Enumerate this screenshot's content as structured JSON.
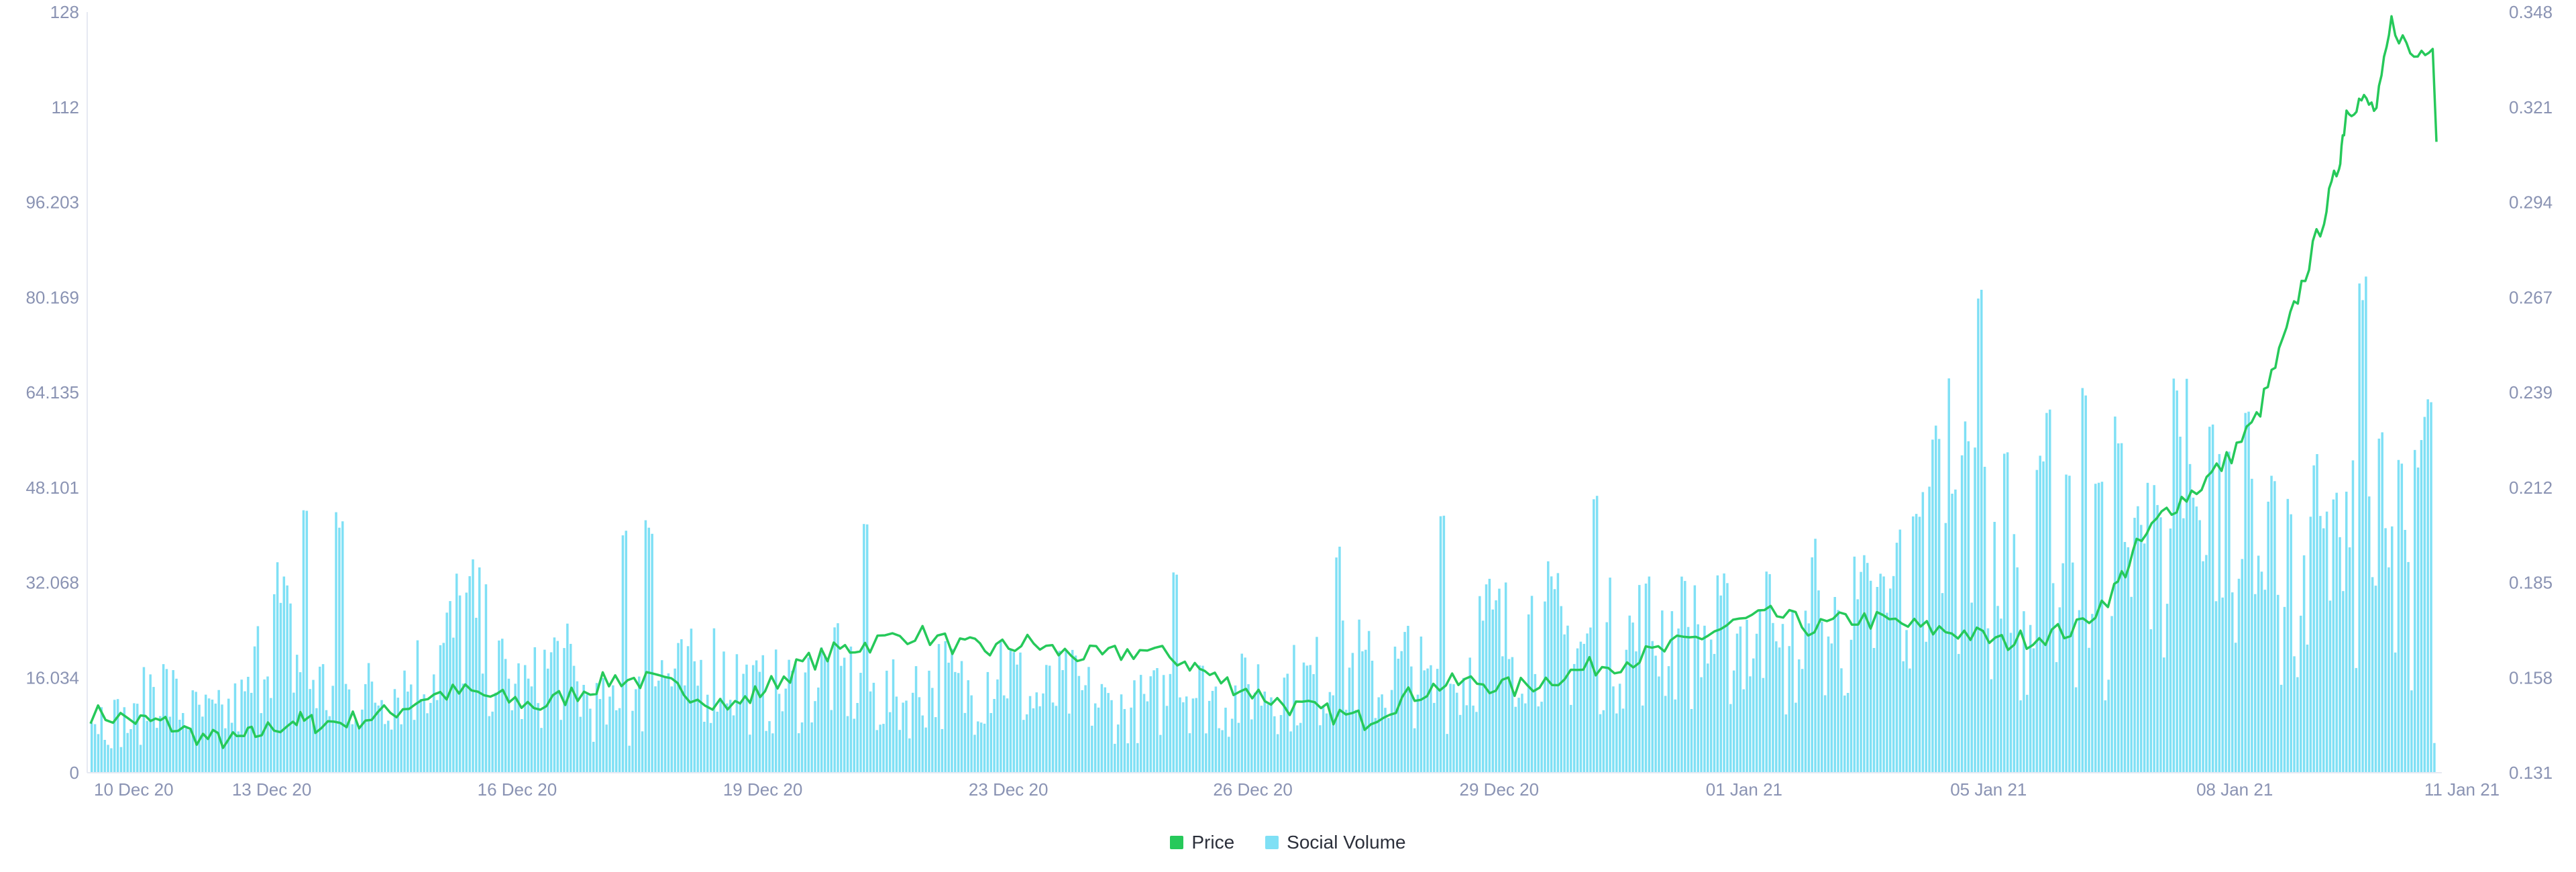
{
  "chart_data": {
    "type": "bar+line",
    "colors": {
      "price": "#26c95a",
      "social_volume": "#7fe0f5",
      "axis_text": "#8a93b3"
    },
    "grid": false,
    "legend_position": "bottom-center",
    "x_ticks": [
      "10 Dec 20",
      "13 Dec 20",
      "16 Dec 20",
      "19 Dec 20",
      "23 Dec 20",
      "26 Dec 20",
      "29 Dec 20",
      "01 Jan 21",
      "05 Jan 21",
      "08 Jan 21",
      "11 Jan 21"
    ],
    "y_left_ticks": [
      "0",
      "16.034",
      "32.068",
      "48.101",
      "64.135",
      "80.169",
      "96.203",
      "112",
      "128"
    ],
    "y_right_ticks": [
      "0.131",
      "0.158",
      "0.185",
      "0.212",
      "0.239",
      "0.267",
      "0.294",
      "0.321",
      "0.348"
    ],
    "y_left_range": [
      0,
      128
    ],
    "y_right_range": [
      0.131,
      0.348
    ],
    "x_range_days": [
      0,
      30.6
    ],
    "series": [
      {
        "name": "Price",
        "type": "line",
        "axis": "right",
        "points": [
          [
            0.0,
            0.148
          ],
          [
            0.6,
            0.146
          ],
          [
            1.0,
            0.145
          ],
          [
            1.5,
            0.141
          ],
          [
            1.9,
            0.14
          ],
          [
            2.2,
            0.142
          ],
          [
            2.7,
            0.146
          ],
          [
            3.0,
            0.145
          ],
          [
            3.5,
            0.146
          ],
          [
            4.0,
            0.148
          ],
          [
            4.5,
            0.153
          ],
          [
            5.0,
            0.154
          ],
          [
            5.5,
            0.152
          ],
          [
            6.0,
            0.15
          ],
          [
            6.5,
            0.154
          ],
          [
            7.0,
            0.158
          ],
          [
            7.5,
            0.157
          ],
          [
            8.0,
            0.154
          ],
          [
            8.6,
            0.15
          ],
          [
            9.0,
            0.155
          ],
          [
            9.5,
            0.162
          ],
          [
            10.0,
            0.166
          ],
          [
            10.4,
            0.168
          ],
          [
            11.0,
            0.171
          ],
          [
            11.6,
            0.167
          ],
          [
            12.0,
            0.166
          ],
          [
            12.5,
            0.168
          ],
          [
            13.0,
            0.165
          ],
          [
            13.5,
            0.164
          ],
          [
            14.0,
            0.166
          ],
          [
            14.6,
            0.163
          ],
          [
            15.0,
            0.158
          ],
          [
            15.5,
            0.154
          ],
          [
            16.0,
            0.15
          ],
          [
            16.5,
            0.148
          ],
          [
            17.0,
            0.146
          ],
          [
            17.5,
            0.152
          ],
          [
            18.0,
            0.156
          ],
          [
            18.5,
            0.157
          ],
          [
            19.0,
            0.155
          ],
          [
            19.5,
            0.158
          ],
          [
            20.0,
            0.161
          ],
          [
            20.5,
            0.163
          ],
          [
            21.0,
            0.166
          ],
          [
            21.5,
            0.17
          ],
          [
            22.0,
            0.174
          ],
          [
            22.5,
            0.176
          ],
          [
            23.0,
            0.172
          ],
          [
            23.5,
            0.175
          ],
          [
            24.0,
            0.174
          ],
          [
            24.5,
            0.172
          ],
          [
            25.0,
            0.171
          ],
          [
            25.5,
            0.168
          ],
          [
            26.0,
            0.17
          ],
          [
            26.5,
            0.172
          ],
          [
            27.0,
            0.183
          ],
          [
            27.3,
            0.195
          ],
          [
            27.7,
            0.206
          ],
          [
            28.1,
            0.212
          ],
          [
            28.5,
            0.22
          ],
          [
            28.9,
            0.232
          ],
          [
            29.2,
            0.25
          ],
          [
            29.5,
            0.27
          ],
          [
            29.8,
            0.29
          ],
          [
            30.0,
            0.305
          ],
          [
            30.1,
            0.32
          ],
          [
            30.3,
            0.323
          ],
          [
            30.5,
            0.32
          ],
          [
            30.7,
            0.345
          ],
          [
            31.0,
            0.335
          ],
          [
            31.3,
            0.341
          ]
        ]
      },
      {
        "name": "Social Volume",
        "type": "bar",
        "axis": "left",
        "bar_count": 720,
        "anchors": [
          [
            0.0,
            10.0
          ],
          [
            0.7,
            8.0
          ],
          [
            1.0,
            16.0
          ],
          [
            1.5,
            10.0
          ],
          [
            2.0,
            9.0
          ],
          [
            2.5,
            12.0
          ],
          [
            2.9,
            28.0
          ],
          [
            3.3,
            18.0
          ],
          [
            3.8,
            13.0
          ],
          [
            4.4,
            13.0
          ],
          [
            5.0,
            15.0
          ],
          [
            5.5,
            18.0
          ],
          [
            6.0,
            27.0
          ],
          [
            6.5,
            16.0
          ],
          [
            7.0,
            13.0
          ],
          [
            7.4,
            19.0
          ],
          [
            8.0,
            11.0
          ],
          [
            8.6,
            9.0
          ],
          [
            9.0,
            17.0
          ],
          [
            9.4,
            15.0
          ],
          [
            10.0,
            18.0
          ],
          [
            10.6,
            13.0
          ],
          [
            11.2,
            14.0
          ],
          [
            11.8,
            17.0
          ],
          [
            12.4,
            13.0
          ],
          [
            13.0,
            12.0
          ],
          [
            13.5,
            16.0
          ],
          [
            14.0,
            13.0
          ],
          [
            14.5,
            19.0
          ],
          [
            15.0,
            12.0
          ],
          [
            15.6,
            14.0
          ],
          [
            16.0,
            12.0
          ],
          [
            16.5,
            10.0
          ],
          [
            17.0,
            12.0
          ],
          [
            17.4,
            15.0
          ],
          [
            17.8,
            13.0
          ],
          [
            18.2,
            12.0
          ],
          [
            18.6,
            15.0
          ],
          [
            19.0,
            14.0
          ],
          [
            19.4,
            15.0
          ],
          [
            19.8,
            16.0
          ],
          [
            20.2,
            18.0
          ],
          [
            20.6,
            14.0
          ],
          [
            21.0,
            18.0
          ],
          [
            21.4,
            13.0
          ],
          [
            21.9,
            16.0
          ],
          [
            22.2,
            24.0
          ],
          [
            22.6,
            22.0
          ],
          [
            23.0,
            25.0
          ],
          [
            23.5,
            22.0
          ],
          [
            24.0,
            21.0
          ],
          [
            24.5,
            22.0
          ],
          [
            25.0,
            24.0
          ],
          [
            25.5,
            22.0
          ],
          [
            26.0,
            22.0
          ],
          [
            26.4,
            24.0
          ],
          [
            26.8,
            17.0
          ],
          [
            27.1,
            19.0
          ],
          [
            27.5,
            22.0
          ],
          [
            28.0,
            24.0
          ],
          [
            28.5,
            26.0
          ],
          [
            29.0,
            28.0
          ],
          [
            29.3,
            40.0
          ],
          [
            29.6,
            44.0
          ],
          [
            30.0,
            38.0
          ],
          [
            30.3,
            32.0
          ],
          [
            30.6,
            29.0
          ],
          [
            31.0,
            25.0
          ],
          [
            31.4,
            23.0
          ],
          [
            31.8,
            27.0
          ],
          [
            32.2,
            24.0
          ],
          [
            32.8,
            31.0
          ],
          [
            33.1,
            40.0
          ],
          [
            33.5,
            44.0
          ],
          [
            34.0,
            40.0
          ],
          [
            34.5,
            34.0
          ],
          [
            35.0,
            29.0
          ],
          [
            35.5,
            28.0
          ],
          [
            36.0,
            36.0
          ],
          [
            36.5,
            28.0
          ],
          [
            37.0,
            30.0
          ],
          [
            37.4,
            24.0
          ]
        ],
        "spikes": [
          [
            3.4,
            44.0
          ],
          [
            3.95,
            42.0
          ],
          [
            8.5,
            41.0
          ],
          [
            8.9,
            42.0
          ],
          [
            12.35,
            42.0
          ],
          [
            17.3,
            34.0
          ],
          [
            19.9,
            38.0
          ],
          [
            21.55,
            43.0
          ],
          [
            24.0,
            45.0
          ],
          [
            25.4,
            33.0
          ],
          [
            26.75,
            35.0
          ],
          [
            27.5,
            38.0
          ],
          [
            28.85,
            40.0
          ],
          [
            29.1,
            42.0
          ],
          [
            29.45,
            59.0
          ],
          [
            29.9,
            55.0
          ],
          [
            30.15,
            82.0
          ],
          [
            30.55,
            53.0
          ],
          [
            31.1,
            51.0
          ],
          [
            31.25,
            60.0
          ],
          [
            31.55,
            49.0
          ],
          [
            31.8,
            62.0
          ],
          [
            32.05,
            51.0
          ],
          [
            32.35,
            58.0
          ],
          [
            32.75,
            38.0
          ],
          [
            33.0,
            43.0
          ],
          [
            33.25,
            64.0
          ],
          [
            33.55,
            47.0
          ],
          [
            33.85,
            58.0
          ],
          [
            34.1,
            54.0
          ],
          [
            34.4,
            63.0
          ],
          [
            34.8,
            48.0
          ],
          [
            35.1,
            44.0
          ],
          [
            35.5,
            53.0
          ],
          [
            35.8,
            46.0
          ],
          [
            36.25,
            81.0
          ],
          [
            36.55,
            58.0
          ],
          [
            36.85,
            51.0
          ],
          [
            37.15,
            54.0
          ],
          [
            37.3,
            62.0
          ]
        ]
      }
    ]
  }
}
